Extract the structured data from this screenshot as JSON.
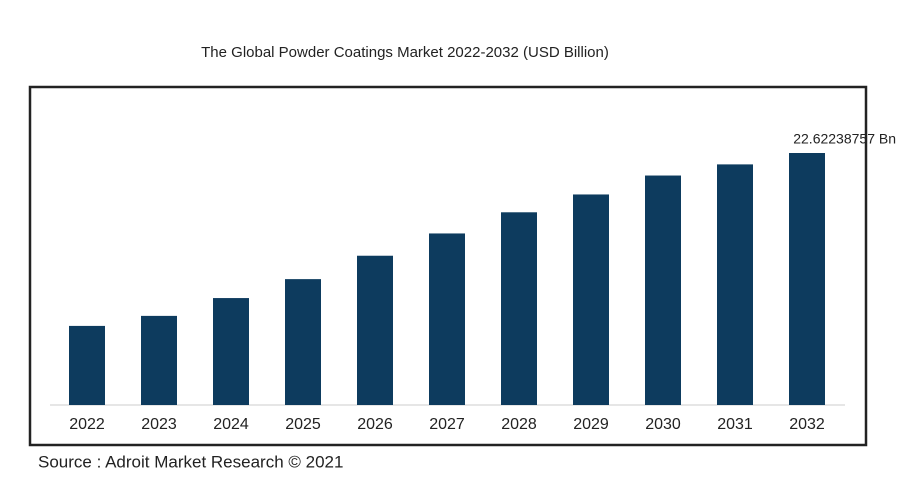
{
  "chart_data": {
    "type": "bar",
    "title": "The Global Powder Coatings Market 2022-2032 (USD Billion)",
    "categories": [
      "2022",
      "2023",
      "2024",
      "2025",
      "2026",
      "2027",
      "2028",
      "2029",
      "2030",
      "2031",
      "2032"
    ],
    "values": [
      7.1,
      8.0,
      9.6,
      11.3,
      13.4,
      15.4,
      17.3,
      18.9,
      20.6,
      21.6,
      22.62238757
    ],
    "value_labels": [
      null,
      null,
      null,
      null,
      null,
      null,
      null,
      null,
      null,
      null,
      "22.62238757 Bn"
    ],
    "color": "#0d3b5e",
    "source": "Source : Adroit Market Research © 2021"
  }
}
